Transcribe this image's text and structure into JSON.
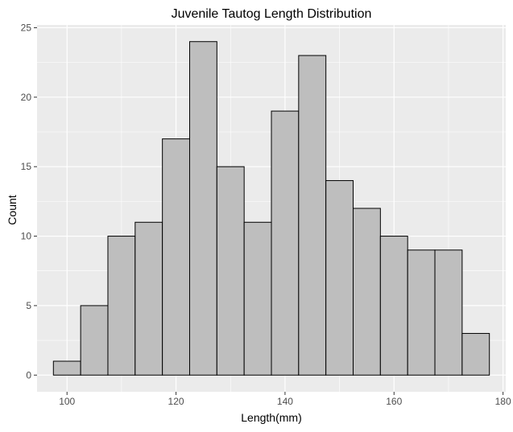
{
  "chart_data": {
    "type": "bar",
    "title": "Juvenile Tautog Length Distribution",
    "xlabel": "Length(mm)",
    "ylabel": "Count",
    "bin_width": 5,
    "bin_starts": [
      97.5,
      102.5,
      107.5,
      112.5,
      117.5,
      122.5,
      127.5,
      132.5,
      137.5,
      142.5,
      147.5,
      152.5,
      157.5,
      162.5,
      167.5,
      172.5
    ],
    "values": [
      1,
      5,
      10,
      11,
      17,
      24,
      15,
      11,
      19,
      23,
      14,
      12,
      10,
      9,
      9,
      3
    ],
    "xlim": [
      94.5,
      180.5
    ],
    "ylim": [
      -1.2,
      25.2
    ],
    "xticks": [
      100,
      120,
      140,
      160,
      180
    ],
    "yticks": [
      0,
      5,
      10,
      15,
      20,
      25
    ],
    "xtick_labels": [
      "100",
      "120",
      "140",
      "160",
      "180"
    ],
    "ytick_labels": [
      "0",
      "5",
      "10",
      "15",
      "20",
      "25"
    ],
    "grid": true,
    "legend": "none",
    "colors": {
      "panel": "#ebebeb",
      "grid_major": "#ffffff",
      "bar_fill": "#bebebe",
      "bar_stroke": "#000000",
      "tick": "#333333"
    }
  }
}
